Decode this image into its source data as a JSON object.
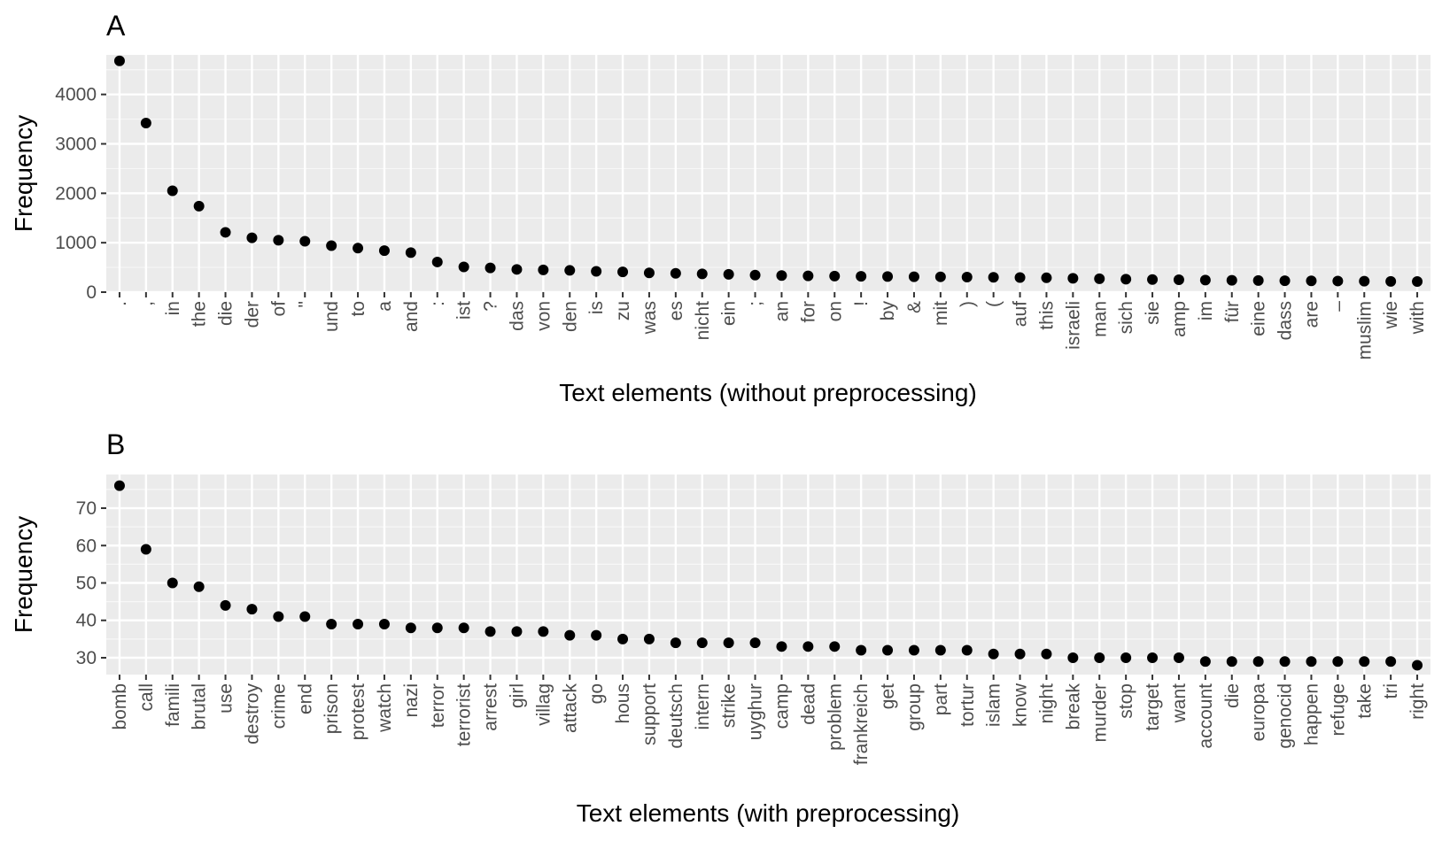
{
  "chart_data": [
    {
      "type": "scatter",
      "panel": "A",
      "xlabel": "Text elements (without preprocessing)",
      "ylabel": "Frequency",
      "ylim": [
        0,
        4800
      ],
      "yticks": [
        0,
        1000,
        2000,
        3000,
        4000
      ],
      "grid": true,
      "categories": [
        ".",
        ",",
        "in",
        "the",
        "die",
        "der",
        "of",
        "\"",
        "und",
        "to",
        "a",
        "and",
        ":",
        "ist",
        "?",
        "das",
        "von",
        "den",
        "is",
        "zu",
        "was",
        "es",
        "nicht",
        "ein",
        ";",
        "an",
        "for",
        "on",
        "!",
        "by",
        "&",
        "mit",
        ")",
        "(",
        "auf",
        "this",
        "israeli",
        "man",
        "sich",
        "sie",
        "amp",
        "im",
        "für",
        "eine",
        "dass",
        "are",
        "–",
        "muslim",
        "wie",
        "with"
      ],
      "values": [
        4680,
        3420,
        2050,
        1740,
        1210,
        1100,
        1050,
        1030,
        940,
        890,
        840,
        800,
        610,
        510,
        490,
        460,
        450,
        440,
        420,
        410,
        390,
        380,
        370,
        360,
        345,
        335,
        330,
        325,
        320,
        315,
        312,
        310,
        305,
        300,
        295,
        290,
        280,
        270,
        262,
        255,
        250,
        245,
        240,
        235,
        230,
        228,
        225,
        222,
        218,
        215
      ]
    },
    {
      "type": "scatter",
      "panel": "B",
      "xlabel": "Text elements (with preprocessing)",
      "ylabel": "Frequency",
      "ylim": [
        25.5,
        79
      ],
      "yticks": [
        30,
        40,
        50,
        60,
        70
      ],
      "grid": true,
      "categories": [
        "bomb",
        "call",
        "famili",
        "brutal",
        "use",
        "destroy",
        "crime",
        "end",
        "prison",
        "protest",
        "watch",
        "nazi",
        "terror",
        "terrorist",
        "arrest",
        "girl",
        "villag",
        "attack",
        "go",
        "hous",
        "support",
        "deutsch",
        "intern",
        "strike",
        "uyghur",
        "camp",
        "dead",
        "problem",
        "frankreich",
        "get",
        "group",
        "part",
        "tortur",
        "islam",
        "know",
        "night",
        "break",
        "murder",
        "stop",
        "target",
        "want",
        "account",
        "die",
        "europa",
        "genocid",
        "happen",
        "refuge",
        "take",
        "tri",
        "right"
      ],
      "values": [
        76,
        59,
        50,
        49,
        44,
        43,
        41,
        41,
        39,
        39,
        39,
        38,
        38,
        38,
        37,
        37,
        37,
        36,
        36,
        35,
        35,
        34,
        34,
        34,
        34,
        33,
        33,
        33,
        32,
        32,
        32,
        32,
        32,
        31,
        31,
        31,
        30,
        30,
        30,
        30,
        30,
        29,
        29,
        29,
        29,
        29,
        29,
        29,
        29,
        28
      ]
    }
  ]
}
